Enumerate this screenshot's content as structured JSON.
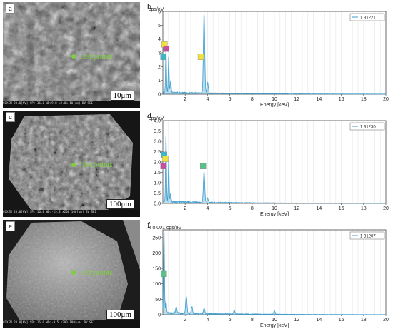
{
  "panels": {
    "a": {
      "label": "a",
      "scale": "10μm",
      "test": "Test points",
      "footer": "COXEM  20.0[KV]  SP:-16.0  WD:9.8  x2.0k  10[um]  BV  SEI"
    },
    "c": {
      "label": "c",
      "scale": "100μm",
      "test": "Test points",
      "footer": "COXEM  20.0[KV]  SP:-16.0  WD:-15.3  x200  100[um]  BV  SEI"
    },
    "e": {
      "label": "e",
      "scale": "100μm",
      "test": "Test points",
      "footer": "COXEM  20.0[KV]  SP:-16.0  WD:-9.5  x200  100[um]  BV  SEI"
    }
  },
  "chart_data": [
    {
      "panel": "b",
      "type": "line",
      "unit": "cps/eV",
      "xlabel": "Energy [keV]",
      "xlim": [
        0,
        20
      ],
      "ylim": [
        0,
        6
      ],
      "yticks": [
        0,
        1,
        2,
        3,
        4,
        5,
        6
      ],
      "xticks": [
        2,
        4,
        6,
        8,
        10,
        12,
        14,
        16,
        18,
        20
      ],
      "legend": "1 31221",
      "color": "#3a9ecf",
      "peaks": [
        {
          "x": 0.28,
          "y": 3.2
        },
        {
          "x": 0.52,
          "y": 2.6
        },
        {
          "x": 0.7,
          "y": 0.9
        },
        {
          "x": 3.69,
          "y": 5.9
        },
        {
          "x": 4.01,
          "y": 0.75
        }
      ],
      "markers": [
        {
          "x": 0.15,
          "y": 3.6,
          "color": "#f0e040"
        },
        {
          "x": 0.3,
          "y": 3.3,
          "color": "#c84fa0"
        },
        {
          "x": 0.05,
          "y": 2.7,
          "color": "#3fb5c8"
        },
        {
          "x": 3.4,
          "y": 2.7,
          "color": "#f0e040"
        }
      ]
    },
    {
      "panel": "d",
      "type": "line",
      "unit": "cps/eV",
      "xlabel": "Energy [keV]",
      "xlim": [
        0,
        20
      ],
      "ylim": [
        0,
        4
      ],
      "yticks": [
        0,
        0.5,
        1,
        1.5,
        2,
        2.5,
        3,
        3.5,
        4
      ],
      "ytick_labels": [
        "0.0",
        "0.5",
        "1.0",
        "1.5",
        "2.0",
        "2.5",
        "3.0",
        "3.5",
        "4.0"
      ],
      "xticks": [
        2,
        4,
        6,
        8,
        10,
        12,
        14,
        16,
        18,
        20
      ],
      "legend": "1 31230",
      "color": "#3a9ecf",
      "peaks": [
        {
          "x": 0.28,
          "y": 3.3
        },
        {
          "x": 0.52,
          "y": 2.0
        },
        {
          "x": 0.7,
          "y": 0.4
        },
        {
          "x": 3.69,
          "y": 1.5
        },
        {
          "x": 4.01,
          "y": 0.2
        }
      ],
      "markers": [
        {
          "x": 0.12,
          "y": 2.35,
          "color": "#3fb5c8"
        },
        {
          "x": 0.22,
          "y": 2.15,
          "color": "#f0e040"
        },
        {
          "x": 0.05,
          "y": 1.8,
          "color": "#c84fa0"
        },
        {
          "x": 3.6,
          "y": 1.8,
          "color": "#5cc08a"
        }
      ]
    },
    {
      "panel": "f",
      "type": "line",
      "unit": "x 0.001 cps/eV",
      "xlabel": "Energy [keV]",
      "xlim": [
        0,
        20
      ],
      "ylim": [
        0,
        275
      ],
      "yticks": [
        0,
        50,
        100,
        150,
        200,
        250
      ],
      "xticks": [
        2,
        4,
        6,
        8,
        10,
        12,
        14,
        16,
        18,
        20
      ],
      "legend": "1 31207",
      "color": "#3a9ecf",
      "peaks": [
        {
          "x": 0.1,
          "y": 270
        },
        {
          "x": 0.28,
          "y": 40
        },
        {
          "x": 1.2,
          "y": 20
        },
        {
          "x": 2.1,
          "y": 55
        },
        {
          "x": 2.6,
          "y": 22
        },
        {
          "x": 3.7,
          "y": 18
        },
        {
          "x": 6.4,
          "y": 12
        },
        {
          "x": 10,
          "y": 12
        }
      ],
      "markers": [
        {
          "x": 0.08,
          "y": 132,
          "color": "#5cc08a"
        }
      ]
    }
  ]
}
